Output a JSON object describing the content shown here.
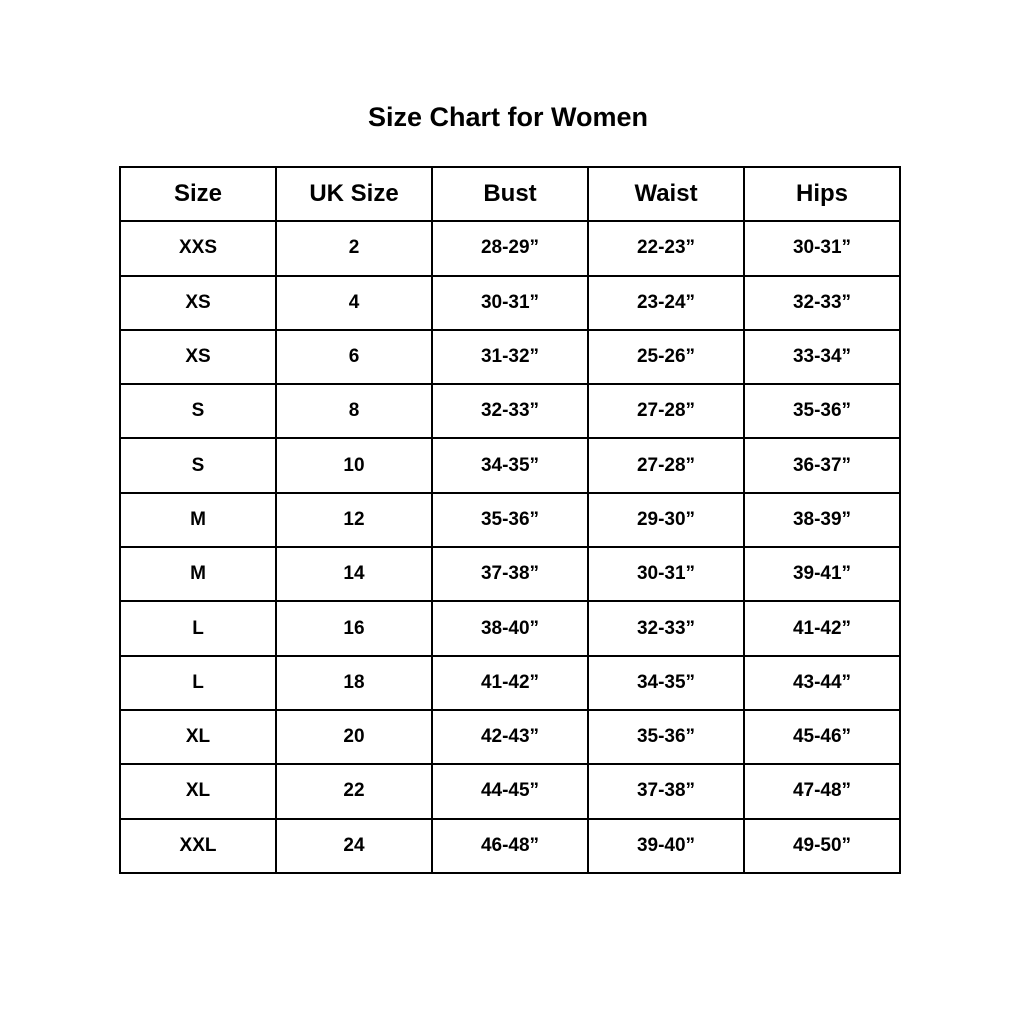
{
  "title": "Size Chart for Women",
  "headers": [
    "Size",
    "UK Size",
    "Bust",
    "Waist",
    "Hips"
  ],
  "rows": [
    [
      "XXS",
      "2",
      "28-29”",
      "22-23”",
      "30-31”"
    ],
    [
      "XS",
      "4",
      "30-31”",
      "23-24”",
      "32-33”"
    ],
    [
      "XS",
      "6",
      "31-32”",
      "25-26”",
      "33-34”"
    ],
    [
      "S",
      "8",
      "32-33”",
      "27-28”",
      "35-36”"
    ],
    [
      "S",
      "10",
      "34-35”",
      "27-28”",
      "36-37”"
    ],
    [
      "M",
      "12",
      "35-36”",
      "29-30”",
      "38-39”"
    ],
    [
      "M",
      "14",
      "37-38”",
      "30-31”",
      "39-41”"
    ],
    [
      "L",
      "16",
      "38-40”",
      "32-33”",
      "41-42”"
    ],
    [
      "L",
      "18",
      "41-42”",
      "34-35”",
      "43-44”"
    ],
    [
      "XL",
      "20",
      "42-43”",
      "35-36”",
      "45-46”"
    ],
    [
      "XL",
      "22",
      "44-45”",
      "37-38”",
      "47-48”"
    ],
    [
      "XXL",
      "24",
      "46-48”",
      "39-40”",
      "49-50”"
    ]
  ]
}
